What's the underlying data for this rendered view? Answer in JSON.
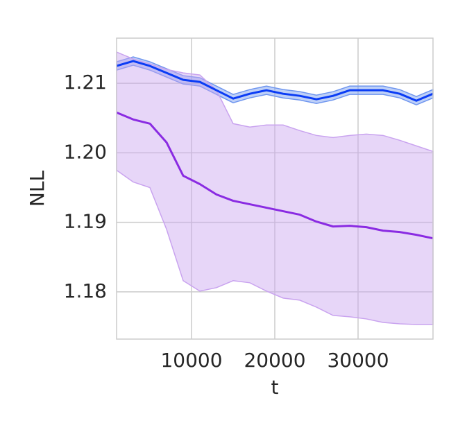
{
  "chart_data": {
    "type": "line",
    "xlabel": "t",
    "ylabel": "NLL",
    "x": [
      1000,
      3000,
      5000,
      7000,
      9000,
      11000,
      13000,
      15000,
      17000,
      19000,
      21000,
      23000,
      25000,
      27000,
      29000,
      31000,
      33000,
      35000,
      37000,
      39000
    ],
    "series": [
      {
        "color": "#0a3cf5",
        "band_color": "#6f96ef",
        "values": [
          1.2125,
          1.2132,
          1.2125,
          1.2115,
          1.2105,
          1.2102,
          1.209,
          1.2078,
          1.2085,
          1.209,
          1.2085,
          1.2082,
          1.2077,
          1.2082,
          1.209,
          1.209,
          1.209,
          1.2085,
          1.2075,
          1.2085
        ],
        "upper": [
          1.2131,
          1.2138,
          1.2131,
          1.2121,
          1.2111,
          1.2108,
          1.2096,
          1.2084,
          1.2091,
          1.2096,
          1.2091,
          1.2088,
          1.2083,
          1.2088,
          1.2096,
          1.2096,
          1.2096,
          1.2091,
          1.2081,
          1.2091
        ],
        "lower": [
          1.2119,
          1.2126,
          1.2119,
          1.2109,
          1.2099,
          1.2096,
          1.2084,
          1.2072,
          1.2079,
          1.2084,
          1.2079,
          1.2076,
          1.2071,
          1.2076,
          1.2084,
          1.2084,
          1.2084,
          1.2079,
          1.2069,
          1.2079
        ]
      },
      {
        "color": "#8a2be2",
        "band_color": "#c9a3ef",
        "values": [
          1.2058,
          1.2048,
          1.2042,
          1.2015,
          1.1967,
          1.1955,
          1.194,
          1.1931,
          1.1926,
          1.1921,
          1.1916,
          1.1911,
          1.1901,
          1.1894,
          1.1895,
          1.1893,
          1.1888,
          1.1886,
          1.1882,
          1.1877
        ],
        "upper": [
          1.2145,
          1.2135,
          1.2128,
          1.212,
          1.2115,
          1.2112,
          1.209,
          1.2042,
          1.2037,
          1.204,
          1.204,
          1.2032,
          1.2025,
          1.2022,
          1.2025,
          1.2027,
          1.2025,
          1.2018,
          1.201,
          1.2002
        ],
        "lower": [
          1.1975,
          1.1958,
          1.195,
          1.189,
          1.1816,
          1.1801,
          1.1806,
          1.1816,
          1.1813,
          1.1801,
          1.1791,
          1.1788,
          1.1778,
          1.1766,
          1.1764,
          1.1761,
          1.1756,
          1.1754,
          1.1753,
          1.1753
        ]
      }
    ],
    "xlim": [
      1000,
      39000
    ],
    "xticks": [
      10000,
      20000,
      30000
    ],
    "ylim": [
      1.1732,
      1.2165
    ],
    "yticks": [
      1.21,
      {
        "value": 1.2,
        "label": "1.20"
      },
      1.19,
      1.18
    ],
    "grid": true
  }
}
